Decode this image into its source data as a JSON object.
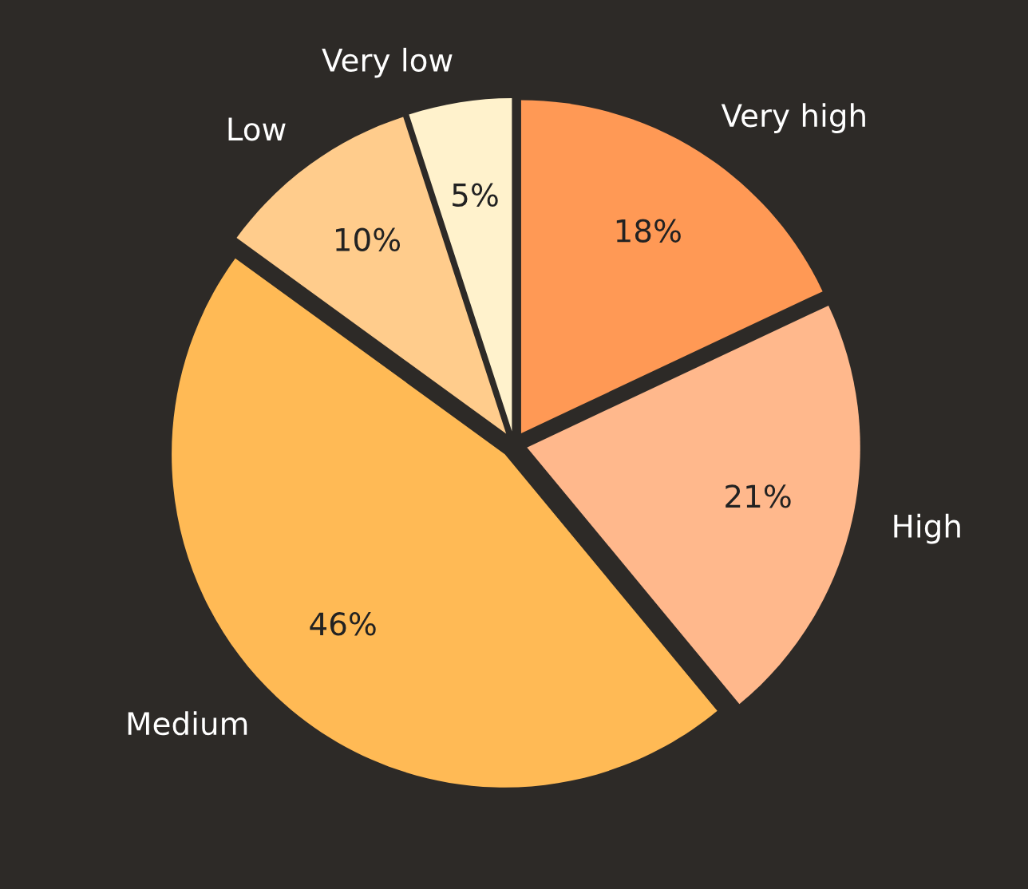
{
  "chart_data": {
    "type": "pie",
    "categories": [
      "Very high",
      "High",
      "Medium",
      "Low",
      "Very low"
    ],
    "values": [
      18,
      21,
      46,
      10,
      5
    ],
    "colors": [
      "#ff9955",
      "#ffb88c",
      "#ffba55",
      "#ffcc8c",
      "#fff2cc"
    ],
    "value_labels": [
      "18%",
      "21%",
      "46%",
      "10%",
      "5%"
    ],
    "legend": false
  }
}
